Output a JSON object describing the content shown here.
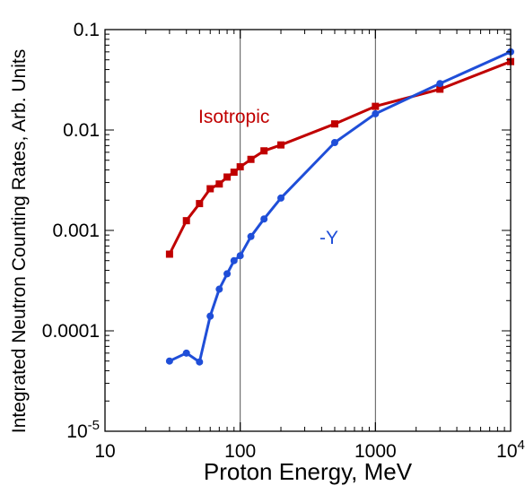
{
  "chart_data": {
    "type": "line",
    "title": "",
    "xlabel": "Proton Energy, MeV",
    "ylabel": "Integrated Neutron Counting Rates, Arb. Units",
    "xscale": "log",
    "yscale": "log",
    "xlim": [
      10,
      10000
    ],
    "ylim": [
      1e-05,
      0.1
    ],
    "grid": "vertical lines at 100 and 1000",
    "x_ticks": [
      {
        "value": 10,
        "label": "10"
      },
      {
        "value": 100,
        "label": "100"
      },
      {
        "value": 1000,
        "label": "1000"
      },
      {
        "value": 10000,
        "label": "10",
        "sup": "4"
      }
    ],
    "y_ticks": [
      {
        "value": 1e-05,
        "label": "10",
        "sup": "-5"
      },
      {
        "value": 0.0001,
        "label": "0.0001"
      },
      {
        "value": 0.001,
        "label": "0.001"
      },
      {
        "value": 0.01,
        "label": "0.01"
      },
      {
        "value": 0.1,
        "label": "0.1"
      }
    ],
    "series": [
      {
        "label": "Isotropic",
        "color": "#c00000",
        "marker": "square",
        "points": [
          [
            30,
            0.00058
          ],
          [
            40,
            0.00125
          ],
          [
            50,
            0.00185
          ],
          [
            60,
            0.0026
          ],
          [
            70,
            0.0029
          ],
          [
            80,
            0.0034
          ],
          [
            90,
            0.0038
          ],
          [
            100,
            0.0043
          ],
          [
            120,
            0.0051
          ],
          [
            150,
            0.0062
          ],
          [
            200,
            0.0071
          ],
          [
            500,
            0.0115
          ],
          [
            1000,
            0.0172
          ],
          [
            3000,
            0.0255
          ],
          [
            10000,
            0.048
          ]
        ]
      },
      {
        "label": "-Y",
        "color": "#1f4ed8",
        "marker": "circle",
        "points": [
          [
            30,
            5e-05
          ],
          [
            40,
            6e-05
          ],
          [
            50,
            4.9e-05
          ],
          [
            60,
            0.00014
          ],
          [
            70,
            0.00026
          ],
          [
            80,
            0.00037
          ],
          [
            90,
            0.0005
          ],
          [
            100,
            0.00056
          ],
          [
            120,
            0.00087
          ],
          [
            150,
            0.0013
          ],
          [
            200,
            0.0021
          ],
          [
            500,
            0.0075
          ],
          [
            1000,
            0.0145
          ],
          [
            3000,
            0.029
          ],
          [
            10000,
            0.06
          ]
        ]
      }
    ],
    "annotations": [
      {
        "text": "Isotropic",
        "color": "#c00000"
      },
      {
        "text": "-Y",
        "color": "#1f4ed8"
      }
    ]
  }
}
